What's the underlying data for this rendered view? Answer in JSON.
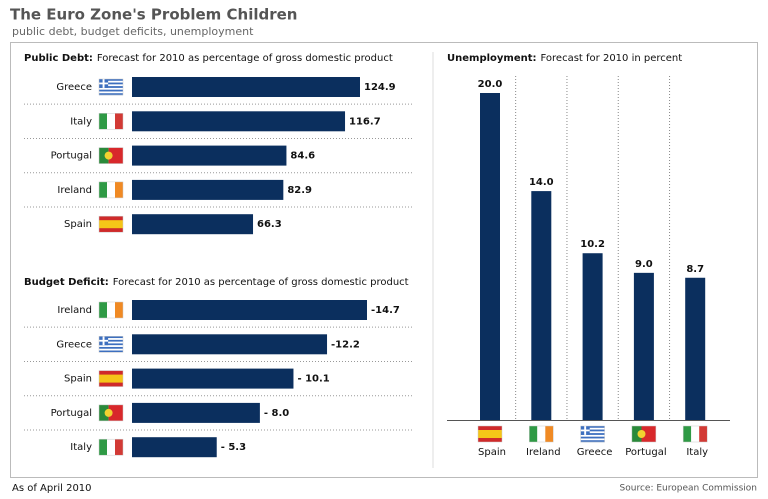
{
  "title": "The Euro Zone's Problem Children",
  "subtitle": "public debt, budget deficits, unemployment",
  "footnote": "As of April 2010",
  "source": "Source: European Commission",
  "chart_data": [
    {
      "type": "hbar",
      "title": "Public Debt:",
      "subtitle": "Forecast for 2010 as percentage of gross domestic product",
      "categories": [
        "Greece",
        "Italy",
        "Portugal",
        "Ireland",
        "Spain"
      ],
      "values": [
        124.9,
        116.7,
        84.6,
        82.9,
        66.3
      ],
      "color": "#0b2f5e"
    },
    {
      "type": "hbar",
      "title": "Budget Deficit:",
      "subtitle": "Forecast for 2010 as percentage of gross domestic product",
      "categories": [
        "Ireland",
        "Greece",
        "Spain",
        "Portugal",
        "Italy"
      ],
      "values": [
        -14.7,
        -12.2,
        -10.1,
        -8.0,
        -5.3
      ],
      "value_labels": [
        "-14.7",
        "-12.2",
        "- 10.1",
        "- 8.0",
        "- 5.3"
      ],
      "color": "#0b2f5e"
    },
    {
      "type": "bar",
      "title": "Unemployment:",
      "subtitle": "Forecast for 2010 in percent",
      "categories": [
        "Spain",
        "Ireland",
        "Greece",
        "Portugal",
        "Italy"
      ],
      "values": [
        20.0,
        14.0,
        10.2,
        9.0,
        8.7
      ],
      "value_labels": [
        "20.0",
        "14.0",
        "10.2",
        "9.0",
        "8.7"
      ],
      "color": "#0b2f5e"
    }
  ]
}
